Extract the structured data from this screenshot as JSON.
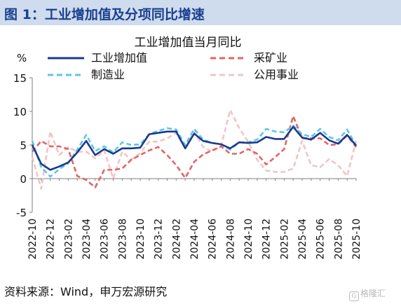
{
  "figure_title": "图 1：工业增加值及分项同比增速",
  "source": "资料来源：Wind，申万宏源研究",
  "watermark": {
    "text": "格隆汇",
    "mark": "G"
  },
  "chart_data": {
    "type": "line",
    "title": "工业增加值当月同比",
    "ylabel": "%",
    "xlabel": "",
    "ylim": [
      -5,
      15
    ],
    "yticks": [
      -5,
      0,
      5,
      10,
      15
    ],
    "x": [
      "2022-10",
      "2022-11",
      "2022-12",
      "2023-01",
      "2023-02",
      "2023-03",
      "2023-04",
      "2023-05",
      "2023-06",
      "2023-07",
      "2023-08",
      "2023-09",
      "2023-10",
      "2023-11",
      "2023-12",
      "2024-01",
      "2024-02",
      "2024-03",
      "2024-04",
      "2024-05",
      "2024-06",
      "2024-07",
      "2024-08",
      "2024-09",
      "2024-10",
      "2024-11",
      "2024-12",
      "2025-01",
      "2025-02",
      "2025-03",
      "2025-04",
      "2025-05",
      "2025-06",
      "2025-07",
      "2025-08",
      "2025-09",
      "2025-10"
    ],
    "xticks": [
      "2022-10",
      "2022-12",
      "2023-02",
      "2023-04",
      "2023-06",
      "2023-08",
      "2023-10",
      "2023-12",
      "2024-02",
      "2024-04",
      "2024-06",
      "2024-08",
      "2024-10",
      "2024-12",
      "2025-02",
      "2025-04",
      "2025-06",
      "2025-08",
      "2025-10"
    ],
    "series": [
      {
        "name": "工业增加值",
        "color": "#1a3a8c",
        "style": "solid",
        "values": [
          5.0,
          2.2,
          1.3,
          1.8,
          2.4,
          3.9,
          5.6,
          3.5,
          4.4,
          3.7,
          4.5,
          4.5,
          4.6,
          6.6,
          6.8,
          7.0,
          7.0,
          4.5,
          6.7,
          5.6,
          5.3,
          5.1,
          4.5,
          5.4,
          5.3,
          5.4,
          6.2,
          5.9,
          5.9,
          7.7,
          6.1,
          5.8,
          6.8,
          5.7,
          5.2,
          6.5,
          4.9
        ]
      },
      {
        "name": "采矿业",
        "color": "#e06666",
        "style": "dashed",
        "values": [
          4.0,
          5.6,
          4.8,
          4.8,
          4.4,
          0.4,
          -0.2,
          -1.3,
          1.3,
          1.3,
          1.5,
          2.8,
          3.5,
          4.2,
          4.7,
          3.5,
          2.0,
          0.1,
          2.5,
          3.6,
          4.2,
          4.8,
          3.7,
          3.7,
          4.4,
          3.7,
          2.1,
          3.2,
          4.4,
          9.3,
          6.0,
          6.0,
          6.0,
          5.0,
          5.1,
          6.4,
          4.7
        ]
      },
      {
        "name": "制造业",
        "color": "#5bc6ee",
        "style": "dashed",
        "values": [
          5.6,
          1.7,
          0.3,
          1.4,
          2.3,
          4.3,
          6.5,
          4.1,
          4.8,
          3.9,
          5.4,
          5.0,
          5.1,
          6.6,
          7.1,
          7.5,
          7.3,
          5.0,
          7.4,
          5.8,
          5.3,
          5.1,
          4.3,
          5.4,
          5.4,
          5.8,
          7.4,
          7.0,
          6.9,
          7.9,
          6.6,
          6.2,
          7.4,
          6.2,
          5.7,
          7.3,
          4.9
        ]
      },
      {
        "name": "公用事业",
        "color": "#f3c4c4",
        "style": "dashed",
        "values": [
          3.2,
          -1.5,
          7.0,
          3.5,
          4.7,
          4.0,
          4.0,
          3.0,
          4.2,
          0.0,
          4.0,
          2.8,
          3.8,
          5.5,
          5.5,
          6.0,
          6.8,
          4.5,
          7.0,
          4.7,
          4.0,
          4.9,
          10.2,
          7.5,
          5.5,
          2.8,
          1.2,
          1.0,
          1.0,
          1.5,
          5.6,
          2.0,
          1.7,
          2.9,
          2.0,
          0.4,
          5.6
        ]
      }
    ],
    "legend": "top"
  }
}
